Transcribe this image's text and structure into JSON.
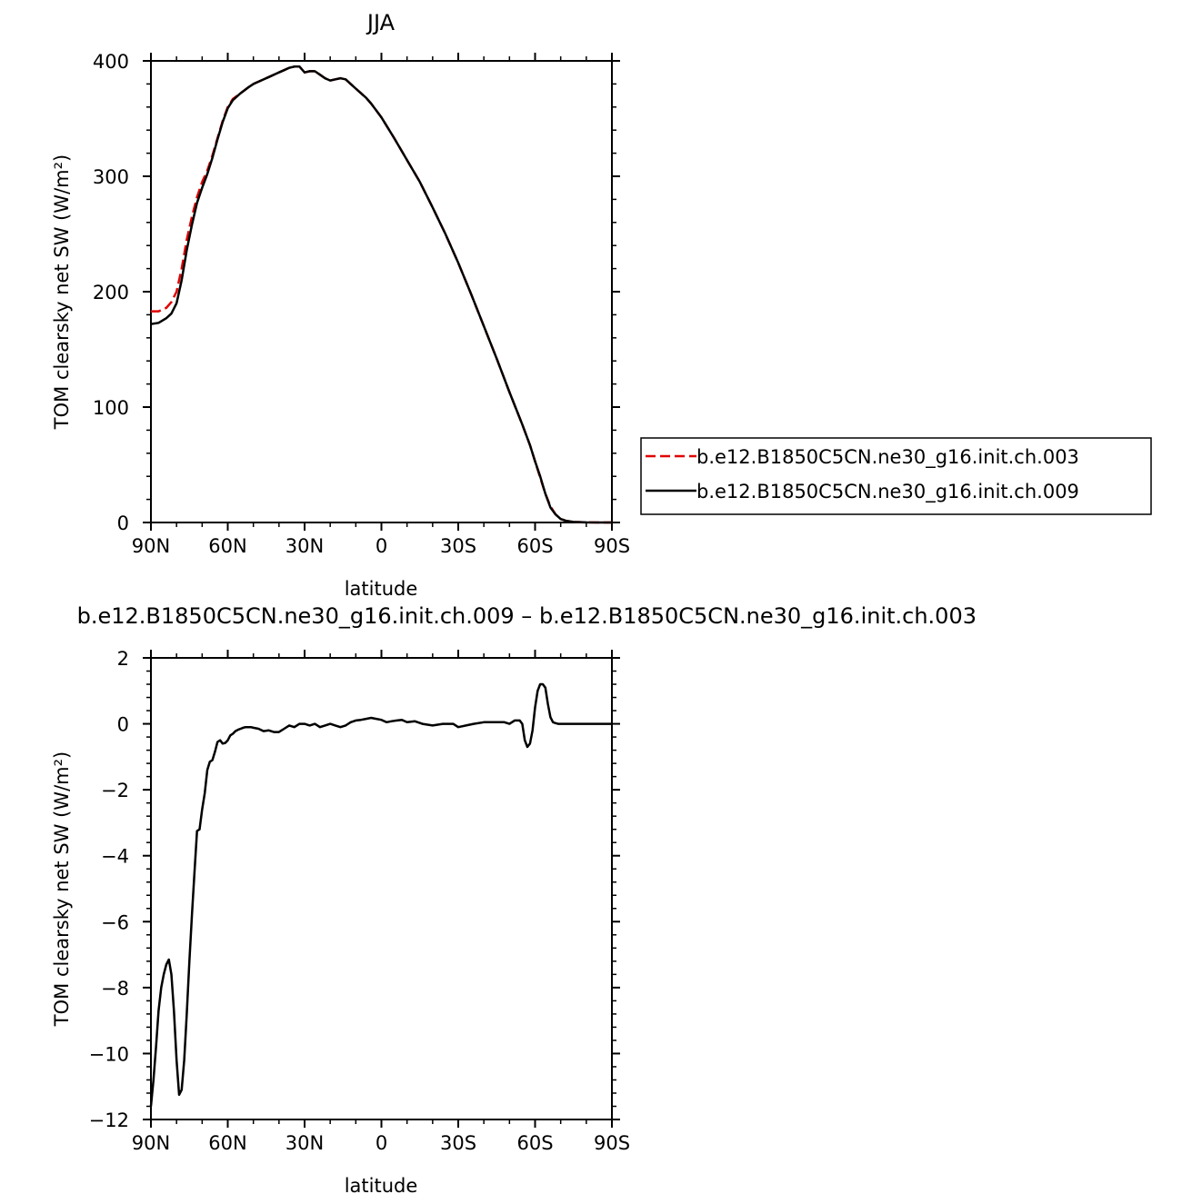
{
  "chart_data": [
    {
      "type": "line",
      "title": "JJA",
      "xlabel": "latitude",
      "ylabel": "TOM clearsky net SW (W/m²)",
      "xlim": [
        90,
        -90
      ],
      "ylim": [
        0,
        400
      ],
      "xticks": [
        90,
        60,
        30,
        0,
        -30,
        -60,
        -90
      ],
      "xtick_labels": [
        "90N",
        "60N",
        "30N",
        "0",
        "30S",
        "60S",
        "90S"
      ],
      "yticks": [
        0,
        100,
        200,
        300,
        400
      ],
      "ytick_labels": [
        "0",
        "100",
        "200",
        "300",
        "400"
      ],
      "legend_position": "right",
      "series": [
        {
          "name": "b.e12.B1850C5CN.ne30_g16.init.ch.003",
          "color": "#e00000",
          "dash": "dashed",
          "x": [
            90,
            87,
            84,
            82,
            80,
            78,
            76,
            74,
            72,
            70,
            68,
            66,
            64,
            62,
            60,
            58,
            55,
            52,
            50,
            47,
            44,
            42,
            40,
            38,
            36,
            34,
            32,
            30,
            28,
            26,
            24,
            22,
            20,
            18,
            16,
            14,
            12,
            10,
            8,
            6,
            4,
            2,
            0,
            -5,
            -10,
            -15,
            -20,
            -25,
            -30,
            -35,
            -40,
            -45,
            -50,
            -55,
            -58,
            -60,
            -62,
            -64,
            -66,
            -68,
            -70,
            -72,
            -75,
            -80,
            -85,
            -90
          ],
          "y": [
            183,
            183,
            186,
            191,
            200,
            220,
            245,
            265,
            282,
            295,
            305,
            318,
            333,
            348,
            360,
            367,
            372,
            377,
            380,
            383,
            386,
            388,
            390,
            392,
            394,
            395,
            395,
            390,
            391,
            391,
            388,
            385,
            383,
            384,
            385,
            384,
            380,
            376,
            372,
            368,
            363,
            357,
            351,
            333,
            314,
            295,
            273,
            250,
            225,
            198,
            170,
            142,
            113,
            85,
            67,
            53,
            39,
            25,
            14,
            7,
            3,
            1.5,
            0.5,
            0.1,
            0,
            0
          ]
        },
        {
          "name": "b.e12.B1850C5CN.ne30_g16.init.ch.009",
          "color": "#000000",
          "dash": "solid",
          "x": [
            90,
            87,
            84,
            82,
            80,
            78,
            76,
            74,
            72,
            70,
            68,
            66,
            64,
            62,
            60,
            58,
            55,
            52,
            50,
            47,
            44,
            42,
            40,
            38,
            36,
            34,
            32,
            30,
            28,
            26,
            24,
            22,
            20,
            18,
            16,
            14,
            12,
            10,
            8,
            6,
            4,
            2,
            0,
            -5,
            -10,
            -15,
            -20,
            -25,
            -30,
            -35,
            -40,
            -45,
            -50,
            -55,
            -58,
            -60,
            -62,
            -64,
            -66,
            -68,
            -70,
            -72,
            -75,
            -80,
            -85,
            -90
          ],
          "y": [
            172,
            173,
            177,
            181,
            190,
            210,
            236,
            258,
            277,
            290,
            302,
            316,
            332,
            347,
            359,
            366,
            372,
            377,
            380,
            383,
            386,
            388,
            390,
            392,
            394,
            395,
            395,
            390,
            391,
            391,
            388,
            385,
            383,
            384,
            385,
            384,
            380,
            376,
            372,
            368,
            363,
            357,
            351,
            333,
            314,
            295,
            273,
            250,
            225,
            198,
            170,
            142,
            113,
            85,
            67,
            53,
            40,
            25,
            13,
            7,
            3,
            1.5,
            0.5,
            0.1,
            0,
            0
          ]
        }
      ]
    },
    {
      "type": "line",
      "title": "b.e12.B1850C5CN.ne30_g16.init.ch.009  –  b.e12.B1850C5CN.ne30_g16.init.ch.003",
      "xlabel": "latitude",
      "ylabel": "TOM clearsky net SW (W/m²)",
      "xlim": [
        90,
        -90
      ],
      "ylim": [
        -12,
        2
      ],
      "xticks": [
        90,
        60,
        30,
        0,
        -30,
        -60,
        -90
      ],
      "xtick_labels": [
        "90N",
        "60N",
        "30N",
        "0",
        "30S",
        "60S",
        "90S"
      ],
      "yticks": [
        -12,
        -10,
        -8,
        -6,
        -4,
        -2,
        0,
        2
      ],
      "ytick_labels": [
        "−12",
        "−10",
        "−8",
        "−6",
        "−4",
        "−2",
        "0",
        "2"
      ],
      "series": [
        {
          "color": "#000000",
          "dash": "solid",
          "x": [
            90,
            89,
            88,
            87,
            86,
            85,
            84,
            83,
            82,
            81,
            80,
            79,
            78,
            77,
            76,
            75,
            74,
            73,
            72,
            71,
            70,
            69,
            68,
            67,
            66,
            65,
            64,
            63,
            62,
            61,
            60,
            59,
            58,
            57,
            56,
            55,
            54,
            53,
            52,
            51,
            50,
            48,
            46,
            44,
            42,
            40,
            38,
            36,
            34,
            32,
            30,
            28,
            26,
            24,
            22,
            20,
            18,
            16,
            14,
            12,
            10,
            8,
            6,
            4,
            2,
            0,
            -2,
            -4,
            -6,
            -8,
            -10,
            -13,
            -16,
            -20,
            -24,
            -28,
            -30,
            -33,
            -36,
            -40,
            -44,
            -48,
            -50,
            -52,
            -54,
            -55,
            -56,
            -57,
            -58,
            -59,
            -60,
            -61,
            -62,
            -63,
            -64,
            -65,
            -66,
            -67,
            -68,
            -69,
            -70,
            -72,
            -75,
            -80,
            -90
          ],
          "y": [
            -11.6,
            -10.8,
            -9.8,
            -8.7,
            -8.0,
            -7.6,
            -7.3,
            -7.15,
            -7.6,
            -8.7,
            -10.2,
            -11.25,
            -11.1,
            -10.2,
            -8.8,
            -7.2,
            -5.8,
            -4.5,
            -3.25,
            -3.2,
            -2.6,
            -2.1,
            -1.4,
            -1.15,
            -1.1,
            -0.85,
            -0.55,
            -0.5,
            -0.6,
            -0.58,
            -0.5,
            -0.35,
            -0.3,
            -0.22,
            -0.18,
            -0.15,
            -0.12,
            -0.1,
            -0.1,
            -0.1,
            -0.12,
            -0.15,
            -0.22,
            -0.2,
            -0.25,
            -0.25,
            -0.15,
            -0.05,
            -0.1,
            0.0,
            0.0,
            -0.05,
            0.0,
            -0.1,
            -0.05,
            0.0,
            -0.05,
            -0.1,
            -0.05,
            0.05,
            0.1,
            0.12,
            0.15,
            0.18,
            0.15,
            0.12,
            0.05,
            0.08,
            0.1,
            0.12,
            0.05,
            0.08,
            0.0,
            -0.05,
            0.0,
            0.0,
            -0.1,
            -0.05,
            0.0,
            0.05,
            0.05,
            0.05,
            0.0,
            0.1,
            0.1,
            0.0,
            -0.5,
            -0.7,
            -0.6,
            -0.2,
            0.5,
            1.0,
            1.2,
            1.2,
            1.1,
            0.6,
            0.2,
            0.05,
            0.02,
            0.0,
            0.0,
            0.0,
            0.0,
            0.0,
            0.0
          ]
        }
      ]
    }
  ]
}
